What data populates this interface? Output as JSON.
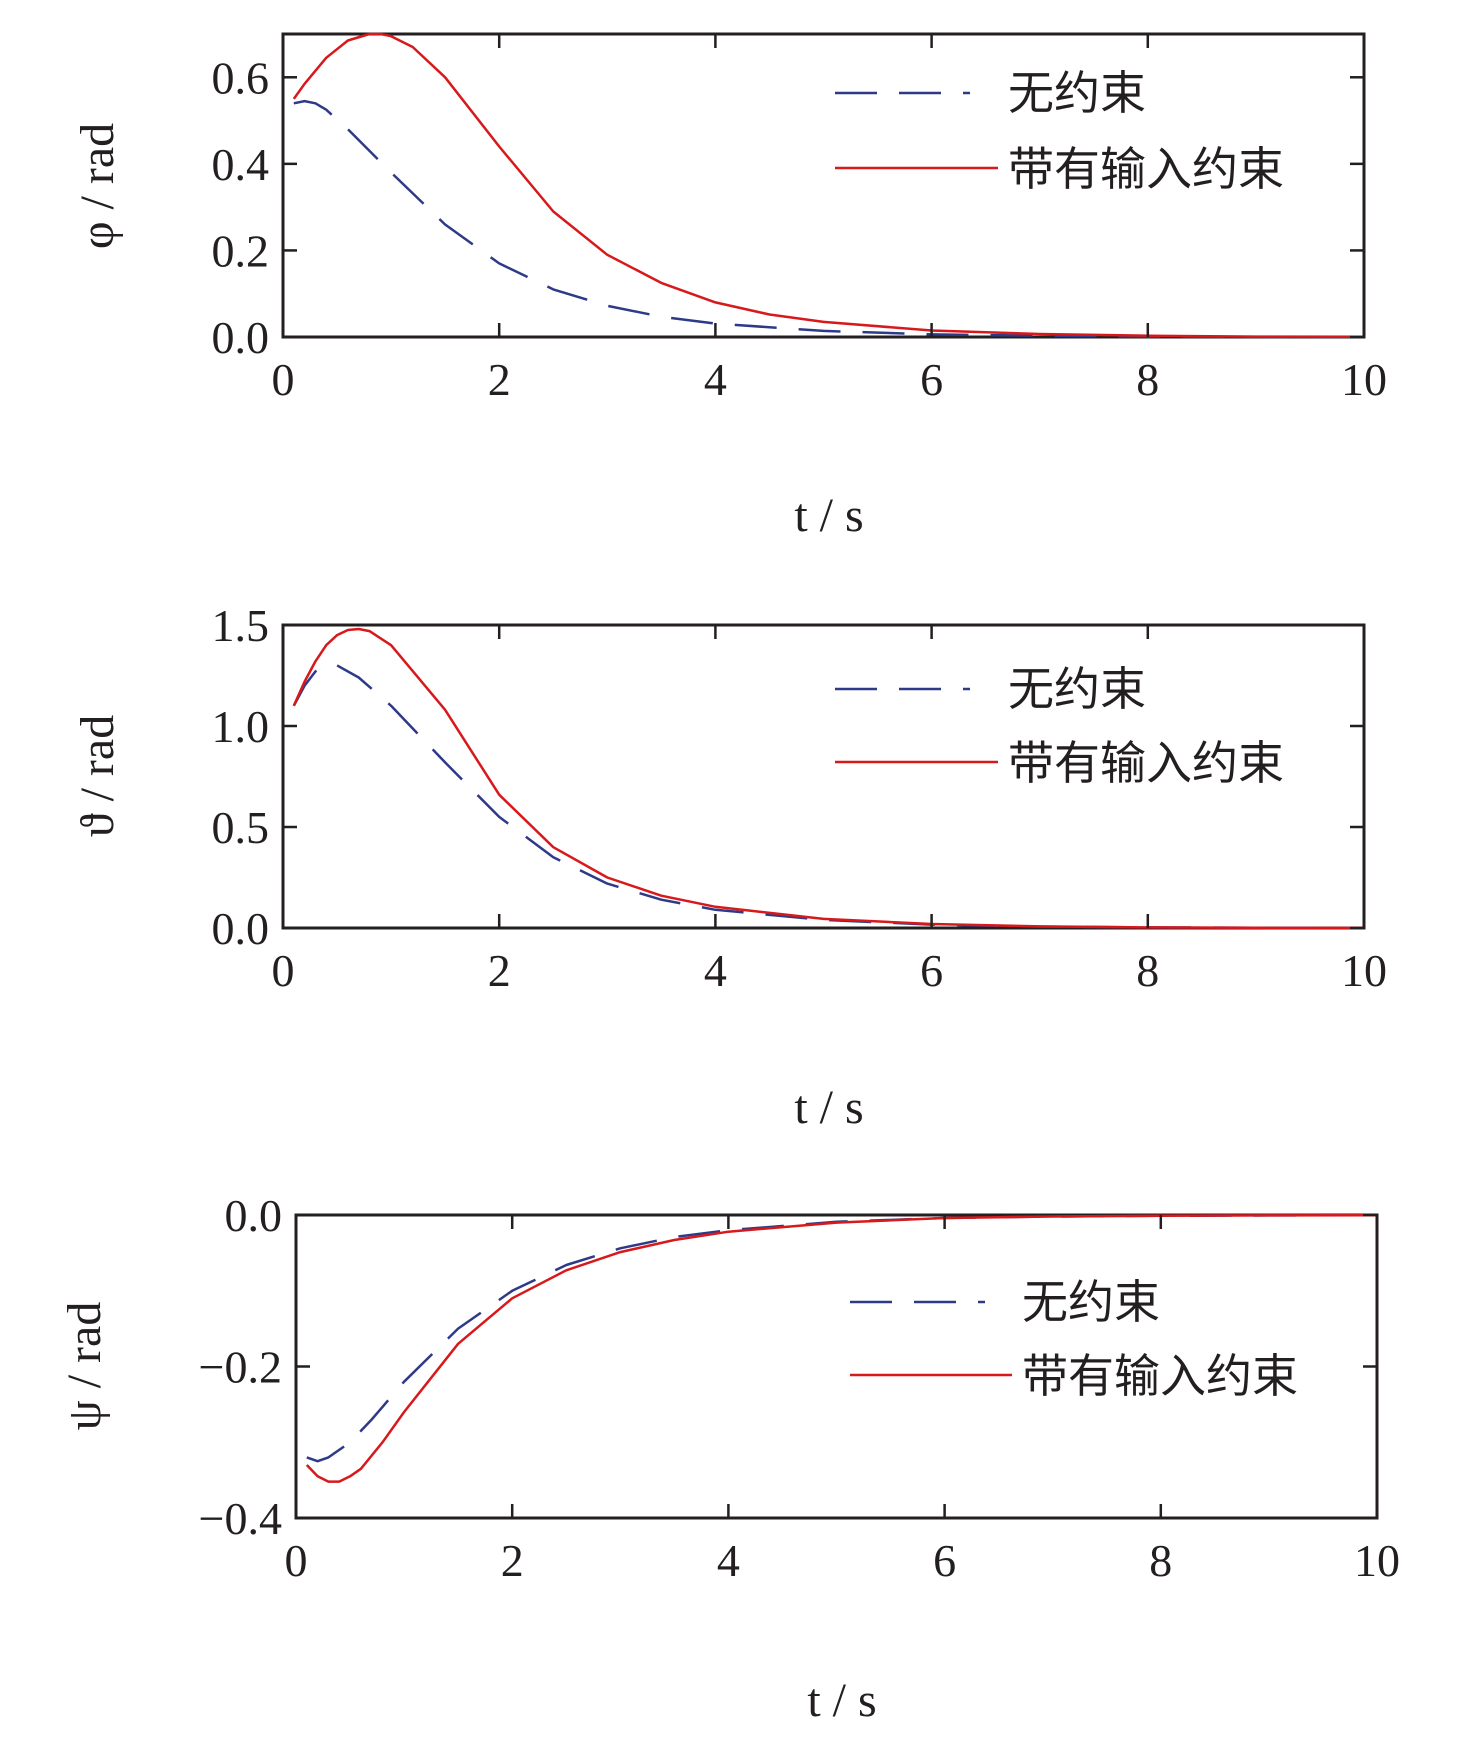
{
  "chart_data": [
    {
      "type": "line",
      "ylabel": "φ / rad",
      "xlabel": "t / s",
      "xlim": [
        0,
        10
      ],
      "ylim": [
        0,
        0.7
      ],
      "xticks": [
        0,
        2,
        4,
        6,
        8,
        10
      ],
      "xtick_labels": [
        "0",
        "2",
        "4",
        "6",
        "8",
        "10"
      ],
      "yticks": [
        0,
        0.2,
        0.4,
        0.6
      ],
      "ytick_labels": [
        "0.0",
        "0.2",
        "0.4",
        "0.6"
      ],
      "legend_position": "top-right",
      "grid": false,
      "series": [
        {
          "name": "无约束",
          "style": "dashed",
          "color": "#2e3a87",
          "x": [
            0.1,
            0.2,
            0.3,
            0.4,
            0.6,
            0.8,
            1.0,
            1.5,
            2.0,
            2.5,
            3.0,
            3.5,
            4.0,
            5.0,
            6.0,
            7.0,
            8.0,
            9.0,
            10.0
          ],
          "y": [
            0.54,
            0.545,
            0.54,
            0.525,
            0.48,
            0.43,
            0.38,
            0.26,
            0.17,
            0.11,
            0.072,
            0.047,
            0.031,
            0.014,
            0.006,
            0.003,
            0.001,
            0.0005,
            0.0002
          ]
        },
        {
          "name": "带有输入约束",
          "style": "solid",
          "color": "#d7191c",
          "x": [
            0.1,
            0.2,
            0.4,
            0.6,
            0.8,
            0.9,
            1.0,
            1.2,
            1.5,
            2.0,
            2.5,
            3.0,
            3.5,
            4.0,
            4.5,
            5.0,
            6.0,
            7.0,
            8.0,
            9.0,
            10.0
          ],
          "y": [
            0.55,
            0.585,
            0.645,
            0.685,
            0.7,
            0.7,
            0.695,
            0.67,
            0.6,
            0.44,
            0.29,
            0.19,
            0.125,
            0.08,
            0.052,
            0.035,
            0.015,
            0.007,
            0.003,
            0.001,
            0.0005
          ]
        }
      ]
    },
    {
      "type": "line",
      "ylabel": "ϑ / rad",
      "xlabel": "t / s",
      "xlim": [
        0,
        10
      ],
      "ylim": [
        0,
        1.5
      ],
      "xticks": [
        0,
        2,
        4,
        6,
        8,
        10
      ],
      "xtick_labels": [
        "0",
        "2",
        "4",
        "6",
        "8",
        "10"
      ],
      "yticks": [
        0,
        0.5,
        1.0,
        1.5
      ],
      "ytick_labels": [
        "0.0",
        "0.5",
        "1.0",
        "1.5"
      ],
      "legend_position": "top-right",
      "grid": false,
      "series": [
        {
          "name": "无约束",
          "style": "dashed",
          "color": "#2e3a87",
          "x": [
            0.1,
            0.2,
            0.3,
            0.4,
            0.5,
            0.7,
            1.0,
            1.5,
            2.0,
            2.5,
            3.0,
            3.5,
            4.0,
            5.0,
            6.0,
            7.0,
            8.0,
            9.0,
            10.0
          ],
          "y": [
            1.1,
            1.2,
            1.27,
            1.3,
            1.3,
            1.24,
            1.1,
            0.82,
            0.55,
            0.35,
            0.22,
            0.14,
            0.09,
            0.04,
            0.017,
            0.007,
            0.003,
            0.001,
            0.0005
          ]
        },
        {
          "name": "带有输入约束",
          "style": "solid",
          "color": "#d7191c",
          "x": [
            0.1,
            0.2,
            0.3,
            0.4,
            0.5,
            0.6,
            0.7,
            0.8,
            1.0,
            1.5,
            2.0,
            2.5,
            3.0,
            3.5,
            4.0,
            5.0,
            6.0,
            7.0,
            8.0,
            9.0,
            10.0
          ],
          "y": [
            1.1,
            1.22,
            1.32,
            1.4,
            1.45,
            1.475,
            1.48,
            1.47,
            1.4,
            1.08,
            0.66,
            0.4,
            0.25,
            0.16,
            0.105,
            0.045,
            0.02,
            0.008,
            0.003,
            0.001,
            0.0005
          ]
        }
      ]
    },
    {
      "type": "line",
      "ylabel": "ψ / rad",
      "xlabel": "t / s",
      "xlim": [
        0,
        10
      ],
      "ylim": [
        -0.4,
        0
      ],
      "xticks": [
        0,
        2,
        4,
        6,
        8,
        10
      ],
      "xtick_labels": [
        "0",
        "2",
        "4",
        "6",
        "8",
        "10"
      ],
      "yticks": [
        -0.4,
        -0.2,
        0
      ],
      "ytick_labels": [
        "−0.4",
        "−0.2",
        "0.0"
      ],
      "legend_position": "right",
      "grid": false,
      "series": [
        {
          "name": "无约束",
          "style": "dashed",
          "color": "#2e3a87",
          "x": [
            0.1,
            0.2,
            0.3,
            0.5,
            0.7,
            1.0,
            1.5,
            2.0,
            2.5,
            3.0,
            3.5,
            4.0,
            5.0,
            6.0,
            7.0,
            8.0,
            9.0,
            10.0
          ],
          "y": [
            -0.32,
            -0.325,
            -0.32,
            -0.3,
            -0.27,
            -0.22,
            -0.15,
            -0.1,
            -0.066,
            -0.044,
            -0.029,
            -0.02,
            -0.009,
            -0.004,
            -0.002,
            -0.001,
            -0.0005,
            -0.0002
          ]
        },
        {
          "name": "带有输入约束",
          "style": "solid",
          "color": "#d7191c",
          "x": [
            0.1,
            0.2,
            0.3,
            0.4,
            0.5,
            0.6,
            0.8,
            1.0,
            1.5,
            2.0,
            2.5,
            3.0,
            3.5,
            4.0,
            5.0,
            6.0,
            7.0,
            8.0,
            9.0,
            10.0
          ],
          "y": [
            -0.33,
            -0.345,
            -0.352,
            -0.352,
            -0.345,
            -0.335,
            -0.3,
            -0.26,
            -0.17,
            -0.11,
            -0.073,
            -0.049,
            -0.033,
            -0.022,
            -0.01,
            -0.004,
            -0.002,
            -0.001,
            -0.0005,
            -0.0002
          ]
        }
      ]
    }
  ]
}
